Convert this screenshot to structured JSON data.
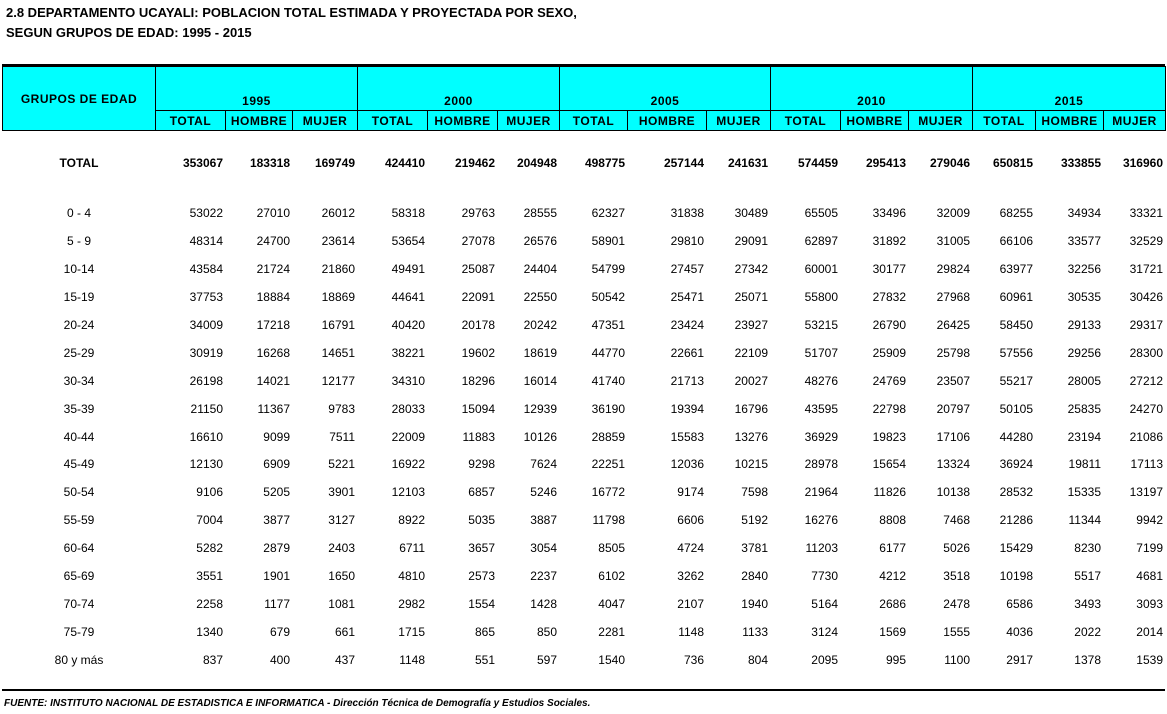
{
  "title": {
    "line1": "2.8  DEPARTAMENTO UCAYALI: POBLACION TOTAL ESTIMADA Y PROYECTADA POR SEXO,",
    "line2": "SEGUN GRUPOS DE EDAD: 1995 - 2015"
  },
  "table": {
    "header": {
      "label": "GRUPOS DE EDAD",
      "groups": [
        {
          "year": "1995",
          "columns": [
            "TOTAL",
            "HOMBRE",
            "MUJER"
          ]
        },
        {
          "year": "2000",
          "columns": [
            "TOTAL",
            "HOMBRE",
            "MUJER"
          ]
        },
        {
          "year": "2005",
          "columns": [
            "TOTAL",
            "HOMBRE",
            "MUJER"
          ]
        },
        {
          "year": "2010",
          "columns": [
            "TOTAL",
            "HOMBRE",
            "MUJER"
          ]
        },
        {
          "year": "2015",
          "columns": [
            "TOTAL",
            "HOMBRE",
            "MUJER"
          ]
        }
      ]
    },
    "total": {
      "label": "TOTAL",
      "values": [
        353067,
        183318,
        169749,
        424410,
        219462,
        204948,
        498775,
        257144,
        241631,
        574459,
        295413,
        279046,
        650815,
        333855,
        316960
      ]
    },
    "rows": [
      {
        "label": "0 - 4",
        "values": [
          53022,
          27010,
          26012,
          58318,
          29763,
          28555,
          62327,
          31838,
          30489,
          65505,
          33496,
          32009,
          68255,
          34934,
          33321
        ]
      },
      {
        "label": "5 - 9",
        "values": [
          48314,
          24700,
          23614,
          53654,
          27078,
          26576,
          58901,
          29810,
          29091,
          62897,
          31892,
          31005,
          66106,
          33577,
          32529
        ]
      },
      {
        "label": "10-14",
        "values": [
          43584,
          21724,
          21860,
          49491,
          25087,
          24404,
          54799,
          27457,
          27342,
          60001,
          30177,
          29824,
          63977,
          32256,
          31721
        ]
      },
      {
        "label": "15-19",
        "values": [
          37753,
          18884,
          18869,
          44641,
          22091,
          22550,
          50542,
          25471,
          25071,
          55800,
          27832,
          27968,
          60961,
          30535,
          30426
        ]
      },
      {
        "label": "20-24",
        "values": [
          34009,
          17218,
          16791,
          40420,
          20178,
          20242,
          47351,
          23424,
          23927,
          53215,
          26790,
          26425,
          58450,
          29133,
          29317
        ]
      },
      {
        "label": "25-29",
        "values": [
          30919,
          16268,
          14651,
          38221,
          19602,
          18619,
          44770,
          22661,
          22109,
          51707,
          25909,
          25798,
          57556,
          29256,
          28300
        ]
      },
      {
        "label": "30-34",
        "values": [
          26198,
          14021,
          12177,
          34310,
          18296,
          16014,
          41740,
          21713,
          20027,
          48276,
          24769,
          23507,
          55217,
          28005,
          27212
        ]
      },
      {
        "label": "35-39",
        "values": [
          21150,
          11367,
          9783,
          28033,
          15094,
          12939,
          36190,
          19394,
          16796,
          43595,
          22798,
          20797,
          50105,
          25835,
          24270
        ]
      },
      {
        "label": "40-44",
        "values": [
          16610,
          9099,
          7511,
          22009,
          11883,
          10126,
          28859,
          15583,
          13276,
          36929,
          19823,
          17106,
          44280,
          23194,
          21086
        ]
      },
      {
        "label": "45-49",
        "values": [
          12130,
          6909,
          5221,
          16922,
          9298,
          7624,
          22251,
          12036,
          10215,
          28978,
          15654,
          13324,
          36924,
          19811,
          17113
        ]
      },
      {
        "label": "50-54",
        "values": [
          9106,
          5205,
          3901,
          12103,
          6857,
          5246,
          16772,
          9174,
          7598,
          21964,
          11826,
          10138,
          28532,
          15335,
          13197
        ]
      },
      {
        "label": "55-59",
        "values": [
          7004,
          3877,
          3127,
          8922,
          5035,
          3887,
          11798,
          6606,
          5192,
          16276,
          8808,
          7468,
          21286,
          11344,
          9942
        ]
      },
      {
        "label": "60-64",
        "values": [
          5282,
          2879,
          2403,
          6711,
          3657,
          3054,
          8505,
          4724,
          3781,
          11203,
          6177,
          5026,
          15429,
          8230,
          7199
        ]
      },
      {
        "label": "65-69",
        "values": [
          3551,
          1901,
          1650,
          4810,
          2573,
          2237,
          6102,
          3262,
          2840,
          7730,
          4212,
          3518,
          10198,
          5517,
          4681
        ]
      },
      {
        "label": "70-74",
        "values": [
          2258,
          1177,
          1081,
          2982,
          1554,
          1428,
          4047,
          2107,
          1940,
          5164,
          2686,
          2478,
          6586,
          3493,
          3093
        ]
      },
      {
        "label": "75-79",
        "values": [
          1340,
          679,
          661,
          1715,
          865,
          850,
          2281,
          1148,
          1133,
          3124,
          1569,
          1555,
          4036,
          2022,
          2014
        ]
      },
      {
        "label": "80 y más",
        "values": [
          837,
          400,
          437,
          1148,
          551,
          597,
          1540,
          736,
          804,
          2095,
          995,
          1100,
          2917,
          1378,
          1539
        ]
      }
    ]
  },
  "footer": {
    "source": "FUENTE: INSTITUTO NACIONAL DE ESTADISTICA E INFORMATICA - Dirección Técnica de Demografía y Estudios Sociales."
  }
}
